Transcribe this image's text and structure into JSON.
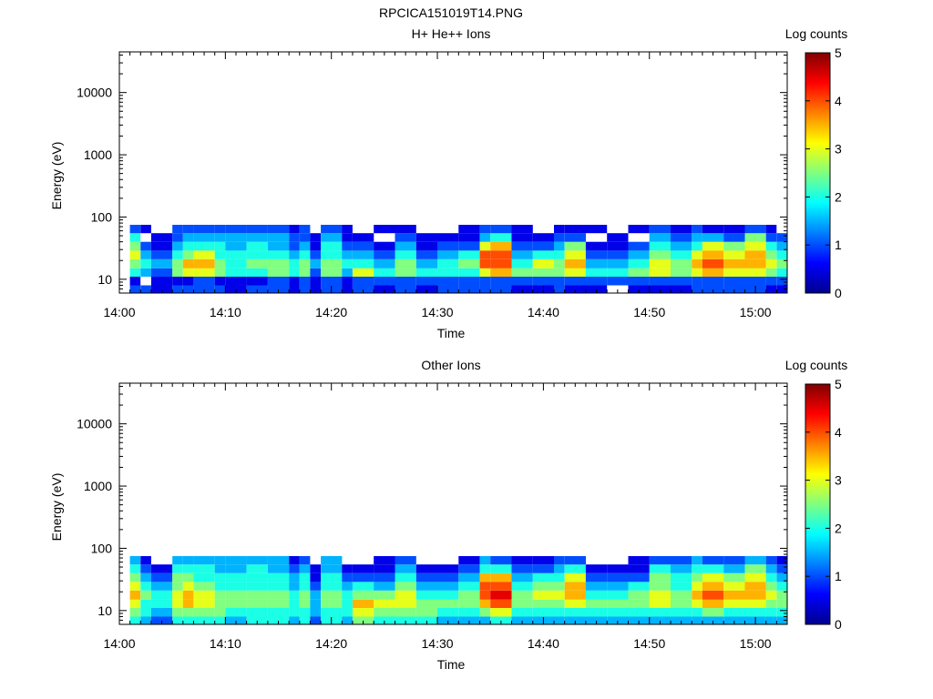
{
  "figure_title": "RPCICA151019T14.PNG",
  "chart_data": [
    {
      "type": "heatmap",
      "title": "H+ He++ Ions",
      "xlabel": "Time",
      "ylabel": "Energy (eV)",
      "x_ticks": [
        "14:00",
        "14:10",
        "14:20",
        "14:30",
        "14:40",
        "14:50",
        "15:00"
      ],
      "xlim": [
        "14:00",
        "15:03"
      ],
      "ylim": [
        6,
        45000
      ],
      "y_scale": "log",
      "y_ticks": [
        "10",
        "100",
        "1000",
        "10000"
      ],
      "colorbar": {
        "label": "Log counts",
        "range": [
          0,
          5
        ],
        "ticks": [
          "0",
          "1",
          "2",
          "3",
          "4",
          "5"
        ]
      },
      "columns": [
        {
          "t": "14:01",
          "values": [
            1,
            0.5,
            2,
            2.5,
            3,
            2.5,
            2,
            1
          ]
        },
        {
          "t": "14:02",
          "values": [
            1,
            null,
            1.5,
            2,
            1.5,
            1,
            null,
            0.5
          ]
        },
        {
          "t": "14:03",
          "values": [
            0.5,
            0.5,
            1,
            1.5,
            1,
            0.5,
            0.5,
            null
          ]
        },
        {
          "t": "14:05",
          "values": [
            1,
            0.5,
            2.5,
            2.5,
            2,
            1.5,
            1,
            1
          ]
        },
        {
          "t": "14:06",
          "values": [
            1,
            0.5,
            3,
            3.5,
            2.5,
            2,
            1.5,
            1
          ]
        },
        {
          "t": "14:07",
          "values": [
            1,
            1,
            3,
            3.5,
            3,
            2,
            1.5,
            1
          ]
        },
        {
          "t": "14:09",
          "values": [
            1,
            0.5,
            2.5,
            2.5,
            2,
            2,
            1.5,
            1
          ]
        },
        {
          "t": "14:10",
          "values": [
            0.5,
            0.5,
            2,
            2,
            2,
            1.5,
            1.5,
            1
          ]
        },
        {
          "t": "14:12",
          "values": [
            1,
            0.5,
            2,
            2.5,
            2,
            2,
            1.5,
            1
          ]
        },
        {
          "t": "14:14",
          "values": [
            1,
            1,
            2.5,
            2.5,
            2,
            1.5,
            1.5,
            1
          ]
        },
        {
          "t": "14:16",
          "values": [
            0.5,
            0.5,
            2,
            2,
            1.5,
            1,
            1,
            0.5
          ]
        },
        {
          "t": "14:17",
          "values": [
            1,
            1,
            2.5,
            2.5,
            2,
            1.5,
            1,
            1
          ]
        },
        {
          "t": "14:18",
          "values": [
            0.5,
            0.5,
            1,
            1.5,
            1,
            0.5,
            0.5,
            null
          ]
        },
        {
          "t": "14:19",
          "values": [
            1,
            1,
            2.5,
            2.5,
            2,
            2,
            1.5,
            1
          ]
        },
        {
          "t": "14:21",
          "values": [
            0.5,
            0.5,
            1.5,
            2,
            1.5,
            1,
            0.5,
            0.5
          ]
        },
        {
          "t": "14:22",
          "values": [
            1,
            1,
            3,
            2,
            1.5,
            1,
            0.5,
            null
          ]
        },
        {
          "t": "14:24",
          "values": [
            0.5,
            1,
            2,
            1.5,
            1,
            0.5,
            null,
            0.5
          ]
        },
        {
          "t": "14:26",
          "values": [
            1,
            1,
            2.5,
            2.5,
            2,
            1.5,
            1,
            0.5
          ]
        },
        {
          "t": "14:28",
          "values": [
            0.5,
            1,
            2,
            1.5,
            1,
            0.5,
            0.5,
            null
          ]
        },
        {
          "t": "14:30",
          "values": [
            1,
            1,
            2,
            2,
            1.5,
            1,
            0.5,
            null
          ]
        },
        {
          "t": "14:32",
          "values": [
            1,
            1,
            2,
            2.5,
            2,
            1,
            0.5,
            0.5
          ]
        },
        {
          "t": "14:34",
          "values": [
            1,
            1,
            3,
            4,
            4,
            3,
            1.5,
            1
          ]
        },
        {
          "t": "14:35",
          "values": [
            1,
            1,
            3.5,
            4,
            4,
            3.5,
            2,
            1
          ]
        },
        {
          "t": "14:37",
          "values": [
            0.5,
            1,
            2.5,
            2,
            1.5,
            1,
            0.5,
            0.5
          ]
        },
        {
          "t": "14:39",
          "values": [
            0.5,
            1,
            2.5,
            3,
            2,
            1,
            0.5,
            null
          ]
        },
        {
          "t": "14:41",
          "values": [
            1,
            1,
            2.5,
            2.5,
            2,
            1.5,
            1,
            0.5
          ]
        },
        {
          "t": "14:42",
          "values": [
            0.5,
            1,
            3,
            3.5,
            3,
            2.5,
            1,
            0.5
          ]
        },
        {
          "t": "14:44",
          "values": [
            0.5,
            1,
            2,
            1.5,
            1,
            0.5,
            null,
            0.5
          ]
        },
        {
          "t": "14:46",
          "values": [
            null,
            1,
            2,
            1.5,
            1,
            0.5,
            0.5,
            null
          ]
        },
        {
          "t": "14:48",
          "values": [
            0.5,
            1,
            2.5,
            2,
            1.5,
            1,
            null,
            0.5
          ]
        },
        {
          "t": "14:50",
          "values": [
            0.5,
            1,
            3,
            3,
            2.5,
            2,
            1.5,
            1
          ]
        },
        {
          "t": "14:52",
          "values": [
            0.5,
            1,
            2.5,
            2.5,
            2,
            1.5,
            1,
            0.5
          ]
        },
        {
          "t": "14:54",
          "values": [
            1,
            1,
            3,
            3.5,
            3,
            2,
            1.5,
            1
          ]
        },
        {
          "t": "14:55",
          "values": [
            1,
            1,
            3.5,
            4,
            3.5,
            3,
            1.5,
            0.5
          ]
        },
        {
          "t": "14:57",
          "values": [
            1,
            1,
            3,
            3.5,
            3,
            2.5,
            1,
            0.5
          ]
        },
        {
          "t": "14:59",
          "values": [
            1,
            1,
            3,
            3.5,
            3.5,
            3,
            2.5,
            1
          ]
        },
        {
          "t": "15:01",
          "values": [
            0.5,
            1,
            2.5,
            3,
            2.5,
            2,
            1,
            0.5
          ]
        },
        {
          "t": "15:02",
          "values": [
            0.5,
            1,
            2,
            2.5,
            2,
            1.5,
            1,
            null
          ]
        }
      ]
    },
    {
      "type": "heatmap",
      "title": "Other Ions",
      "xlabel": "Time",
      "ylabel": "Energy (eV)",
      "x_ticks": [
        "14:00",
        "14:10",
        "14:20",
        "14:30",
        "14:40",
        "14:50",
        "15:00"
      ],
      "xlim": [
        "14:00",
        "15:03"
      ],
      "ylim": [
        6,
        45000
      ],
      "y_scale": "log",
      "y_ticks": [
        "10",
        "100",
        "1000",
        "10000"
      ],
      "colorbar": {
        "label": "Log counts",
        "range": [
          0,
          5
        ],
        "ticks": [
          "0",
          "1",
          "2",
          "3",
          "4",
          "5"
        ]
      },
      "columns": [
        {
          "t": "14:01",
          "values": [
            2,
            2.5,
            3,
            3.5,
            3,
            2.5,
            2,
            1.5
          ]
        },
        {
          "t": "14:02",
          "values": [
            1.5,
            2,
            2,
            2.5,
            2,
            1.5,
            1,
            0.5
          ]
        },
        {
          "t": "14:03",
          "values": [
            1,
            1.5,
            2,
            2,
            1.5,
            1,
            0.5,
            null
          ]
        },
        {
          "t": "14:05",
          "values": [
            2,
            2.5,
            3,
            3,
            2.5,
            2.5,
            2,
            1.5
          ]
        },
        {
          "t": "14:06",
          "values": [
            2,
            2.5,
            3.5,
            3.5,
            3,
            2.5,
            2,
            1.5
          ]
        },
        {
          "t": "14:07",
          "values": [
            2,
            2.5,
            3,
            3,
            2.5,
            2,
            2,
            1.5
          ]
        },
        {
          "t": "14:09",
          "values": [
            2,
            2.5,
            2.5,
            2.5,
            2,
            2,
            1.5,
            1.5
          ]
        },
        {
          "t": "14:10",
          "values": [
            1.5,
            2,
            2.5,
            2.5,
            2,
            2,
            1.5,
            1.5
          ]
        },
        {
          "t": "14:12",
          "values": [
            2,
            2,
            2.5,
            2.5,
            2,
            2,
            2,
            1.5
          ]
        },
        {
          "t": "14:14",
          "values": [
            2,
            2,
            2.5,
            2.5,
            2,
            2,
            1.5,
            1.5
          ]
        },
        {
          "t": "14:16",
          "values": [
            1.5,
            2,
            2,
            2,
            1.5,
            1.5,
            1,
            0.5
          ]
        },
        {
          "t": "14:17",
          "values": [
            2,
            2,
            2.5,
            2.5,
            2,
            2,
            1.5,
            1
          ]
        },
        {
          "t": "14:18",
          "values": [
            1,
            1.5,
            1.5,
            1.5,
            1,
            0.5,
            0.5,
            null
          ]
        },
        {
          "t": "14:19",
          "values": [
            2,
            2,
            2.5,
            2.5,
            2,
            2,
            1.5,
            1.5
          ]
        },
        {
          "t": "14:21",
          "values": [
            1.5,
            2,
            2,
            2,
            1.5,
            1,
            0.5,
            null
          ]
        },
        {
          "t": "14:22",
          "values": [
            2.5,
            3,
            3.5,
            2.5,
            2,
            1,
            0.5,
            null
          ]
        },
        {
          "t": "14:24",
          "values": [
            2,
            2.5,
            3,
            2.5,
            1.5,
            1,
            0.5,
            0.5
          ]
        },
        {
          "t": "14:26",
          "values": [
            2,
            2.5,
            3,
            3,
            2.5,
            2,
            1.5,
            1
          ]
        },
        {
          "t": "14:28",
          "values": [
            2,
            2.5,
            2.5,
            2,
            1.5,
            1,
            0.5,
            null
          ]
        },
        {
          "t": "14:30",
          "values": [
            1.5,
            2,
            2.5,
            2,
            1.5,
            1,
            0.5,
            null
          ]
        },
        {
          "t": "14:32",
          "values": [
            1.5,
            2,
            2.5,
            2.5,
            2,
            1.5,
            1,
            0.5
          ]
        },
        {
          "t": "14:34",
          "values": [
            1.5,
            2.5,
            3.5,
            4,
            4,
            3.5,
            2,
            1.5
          ]
        },
        {
          "t": "14:35",
          "values": [
            2,
            3,
            4,
            4.5,
            4,
            3.5,
            2,
            1
          ]
        },
        {
          "t": "14:37",
          "values": [
            1.5,
            2,
            2.5,
            2.5,
            2,
            1.5,
            1,
            0.5
          ]
        },
        {
          "t": "14:39",
          "values": [
            1.5,
            2,
            2.5,
            3,
            2.5,
            2,
            1,
            0.5
          ]
        },
        {
          "t": "14:41",
          "values": [
            1.5,
            2,
            2.5,
            3,
            2.5,
            2,
            1.5,
            1
          ]
        },
        {
          "t": "14:42",
          "values": [
            1.5,
            2,
            3,
            3.5,
            3.5,
            3,
            2,
            1
          ]
        },
        {
          "t": "14:44",
          "values": [
            1.5,
            2,
            2.5,
            2,
            1.5,
            1,
            0.5,
            null
          ]
        },
        {
          "t": "14:46",
          "values": [
            1.5,
            2,
            2.5,
            2,
            1.5,
            1,
            0.5,
            null
          ]
        },
        {
          "t": "14:48",
          "values": [
            1.5,
            2,
            2.5,
            2.5,
            2,
            1,
            0.5,
            0.5
          ]
        },
        {
          "t": "14:50",
          "values": [
            1.5,
            2,
            3,
            3,
            2.5,
            2.5,
            2,
            1
          ]
        },
        {
          "t": "14:52",
          "values": [
            1.5,
            2,
            2.5,
            2.5,
            2,
            2,
            1.5,
            1
          ]
        },
        {
          "t": "14:54",
          "values": [
            1.5,
            2,
            3,
            3.5,
            3,
            2.5,
            2,
            1.5
          ]
        },
        {
          "t": "14:55",
          "values": [
            1.5,
            2.5,
            3.5,
            4,
            3.5,
            3,
            2,
            1
          ]
        },
        {
          "t": "14:57",
          "values": [
            1.5,
            2,
            3,
            3.5,
            3,
            2.5,
            1.5,
            1
          ]
        },
        {
          "t": "14:59",
          "values": [
            1.5,
            2,
            3,
            3.5,
            3.5,
            3,
            2.5,
            1.5
          ]
        },
        {
          "t": "15:01",
          "values": [
            1.5,
            2,
            2.5,
            3,
            2.5,
            2,
            1.5,
            1
          ]
        },
        {
          "t": "15:02",
          "values": [
            1.5,
            2,
            2.5,
            2.5,
            2,
            1.5,
            1,
            0.5
          ]
        }
      ]
    }
  ]
}
